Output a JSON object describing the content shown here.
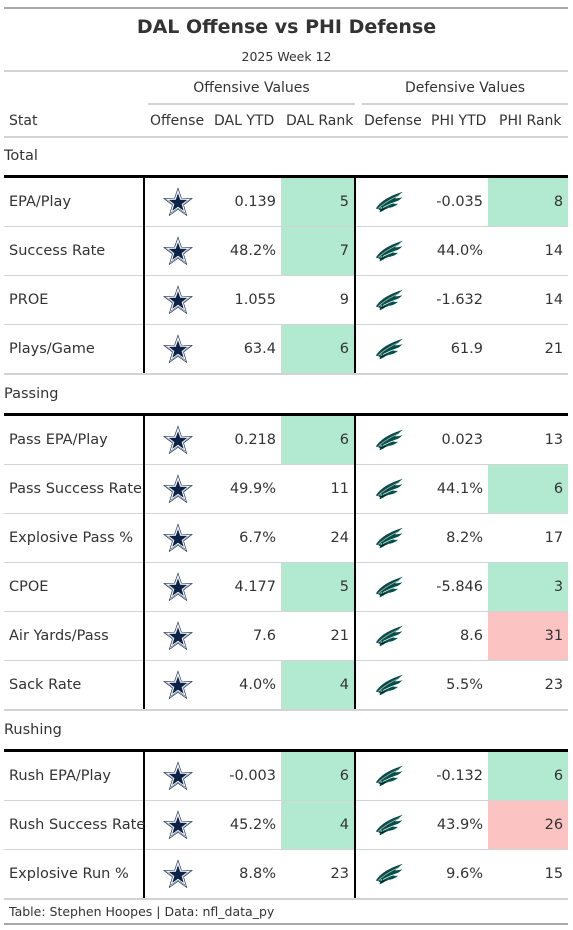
{
  "title": "DAL Offense vs PHI Defense",
  "subtitle": "2025 Week 12",
  "spanners": {
    "offense": "Offensive Values",
    "defense": "Defensive Values"
  },
  "columns": {
    "stat": "Stat",
    "offense": "Offense",
    "dal_ytd": "DAL YTD",
    "dal_rank": "DAL Rank",
    "defense": "Defense",
    "phi_ytd": "PHI YTD",
    "phi_rank": "PHI Rank"
  },
  "icons": {
    "offense": "cowboys-star-icon",
    "defense": "eagles-logo-icon"
  },
  "colors": {
    "good": "#b2ead1",
    "bad": "#fcc3c3",
    "navy": "#0c2347",
    "eagle": "#054f49"
  },
  "groups": [
    {
      "name": "Total",
      "rows": [
        {
          "stat": "EPA/Play",
          "dal_ytd": "0.139",
          "dal_rank": "5",
          "dal_shade": "good",
          "phi_ytd": "-0.035",
          "phi_rank": "8",
          "phi_shade": "good"
        },
        {
          "stat": "Success Rate",
          "dal_ytd": "48.2%",
          "dal_rank": "7",
          "dal_shade": "good",
          "phi_ytd": "44.0%",
          "phi_rank": "14",
          "phi_shade": ""
        },
        {
          "stat": "PROE",
          "dal_ytd": "1.055",
          "dal_rank": "9",
          "dal_shade": "",
          "phi_ytd": "-1.632",
          "phi_rank": "14",
          "phi_shade": ""
        },
        {
          "stat": "Plays/Game",
          "dal_ytd": "63.4",
          "dal_rank": "6",
          "dal_shade": "good",
          "phi_ytd": "61.9",
          "phi_rank": "21",
          "phi_shade": ""
        }
      ]
    },
    {
      "name": "Passing",
      "rows": [
        {
          "stat": "Pass EPA/Play",
          "dal_ytd": "0.218",
          "dal_rank": "6",
          "dal_shade": "good",
          "phi_ytd": "0.023",
          "phi_rank": "13",
          "phi_shade": ""
        },
        {
          "stat": "Pass Success Rate",
          "dal_ytd": "49.9%",
          "dal_rank": "11",
          "dal_shade": "",
          "phi_ytd": "44.1%",
          "phi_rank": "6",
          "phi_shade": "good"
        },
        {
          "stat": "Explosive Pass %",
          "dal_ytd": "6.7%",
          "dal_rank": "24",
          "dal_shade": "",
          "phi_ytd": "8.2%",
          "phi_rank": "17",
          "phi_shade": ""
        },
        {
          "stat": "CPOE",
          "dal_ytd": "4.177",
          "dal_rank": "5",
          "dal_shade": "good",
          "phi_ytd": "-5.846",
          "phi_rank": "3",
          "phi_shade": "good"
        },
        {
          "stat": "Air Yards/Pass",
          "dal_ytd": "7.6",
          "dal_rank": "21",
          "dal_shade": "",
          "phi_ytd": "8.6",
          "phi_rank": "31",
          "phi_shade": "bad"
        },
        {
          "stat": "Sack Rate",
          "dal_ytd": "4.0%",
          "dal_rank": "4",
          "dal_shade": "good",
          "phi_ytd": "5.5%",
          "phi_rank": "23",
          "phi_shade": ""
        }
      ]
    },
    {
      "name": "Rushing",
      "rows": [
        {
          "stat": "Rush EPA/Play",
          "dal_ytd": "-0.003",
          "dal_rank": "6",
          "dal_shade": "good",
          "phi_ytd": "-0.132",
          "phi_rank": "6",
          "phi_shade": "good"
        },
        {
          "stat": "Rush Success Rate",
          "dal_ytd": "45.2%",
          "dal_rank": "4",
          "dal_shade": "good",
          "phi_ytd": "43.9%",
          "phi_rank": "26",
          "phi_shade": "bad"
        },
        {
          "stat": "Explosive Run %",
          "dal_ytd": "8.8%",
          "dal_rank": "23",
          "dal_shade": "",
          "phi_ytd": "9.6%",
          "phi_rank": "15",
          "phi_shade": ""
        }
      ]
    }
  ],
  "footer": "Table: Stephen Hoopes | Data: nfl_data_py"
}
